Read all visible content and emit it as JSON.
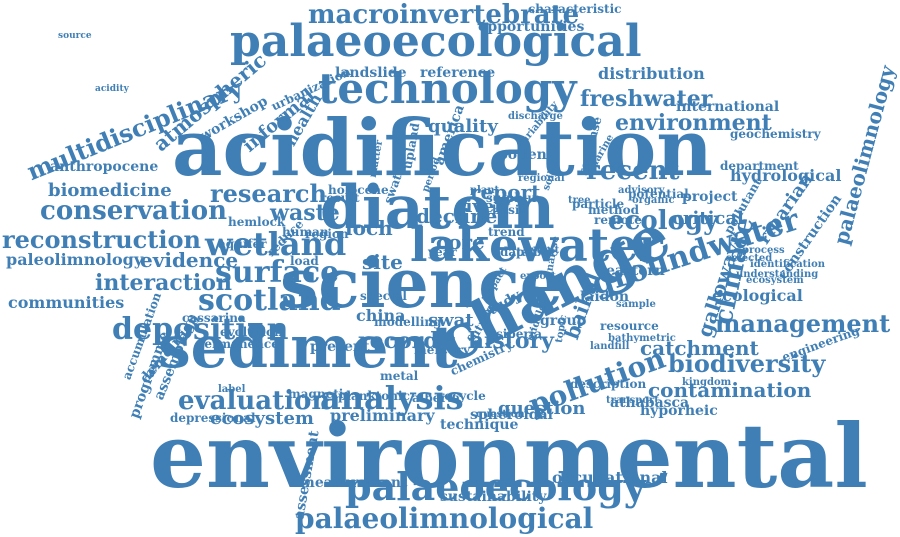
{
  "colors": {
    "word": "#3f7fb5",
    "background": "#ffffff"
  },
  "words": [
    "environmental",
    "acidification",
    "science",
    "change",
    "diatom",
    "sediment",
    "lakewater",
    "palaeoecological",
    "technology",
    "palaeoecology",
    "groundwater",
    "palaeolimnological",
    "wetland",
    "surface",
    "deposition",
    "scotland",
    "analysis",
    "pollution",
    "management",
    "contamination",
    "macroinvertebrate",
    "multidisciplinary",
    "reconstruction",
    "conservation",
    "interaction",
    "biodiversity",
    "evaluation",
    "research",
    "environment",
    "recent",
    "ecology",
    "climate",
    "atmospheric",
    "palaeolimnology",
    "paleolimnology",
    "evidence",
    "freshwater",
    "history",
    "record",
    "catchment",
    "communities",
    "ecological",
    "hydrological",
    "quality",
    "waste",
    "loch",
    "core",
    "site",
    "report",
    "baikal",
    "riparian",
    "galloway",
    "ecosystem",
    "question",
    "hyporheic",
    "occupational",
    "measurement",
    "international",
    "distribution",
    "landslide",
    "reference",
    "opportunities",
    "characteristic",
    "urbanization",
    "workshop",
    "informal",
    "health",
    "biomedicine",
    "anthropocene",
    "preliminary",
    "technique",
    "spheroidal",
    "assemblage",
    "programme",
    "assessment",
    "athabasca",
    "sustainability",
    "geochemistry",
    "department",
    "project",
    "critical",
    "construction",
    "pollutant",
    "engineering",
    "permanence",
    "cassarina",
    "evolution",
    "accumulation",
    "demolition",
    "depressional",
    "magnetic",
    "planktonic",
    "alberta",
    "recycle",
    "china",
    "swat",
    "study",
    "group",
    "laidon",
    "eastern",
    "decline",
    "river",
    "upland",
    "pollen",
    "holocene",
    "result",
    "potential",
    "particle",
    "method",
    "remote",
    "present",
    "special",
    "mercury",
    "future",
    "modelling",
    "landfill",
    "label",
    "description",
    "kingdom",
    "chemistry",
    "question",
    "resource",
    "metal",
    "siberia",
    "public",
    "extent",
    "data",
    "year",
    "load",
    "region",
    "human",
    "reduce",
    "aquifer",
    "hemlock",
    "sulphur",
    "basin",
    "plant",
    "period",
    "swatrw",
    "america",
    "response",
    "advisory",
    "organic",
    "selected",
    "identification",
    "understanding",
    "ecosystem",
    "tree",
    "bathymetric",
    "transport",
    "regional",
    "marine",
    "matter",
    "variability",
    "discharge",
    "soil",
    "process",
    "sample",
    "analyse",
    "middle",
    "topic",
    "export",
    "impact",
    "trend",
    "source",
    "acidity"
  ]
}
